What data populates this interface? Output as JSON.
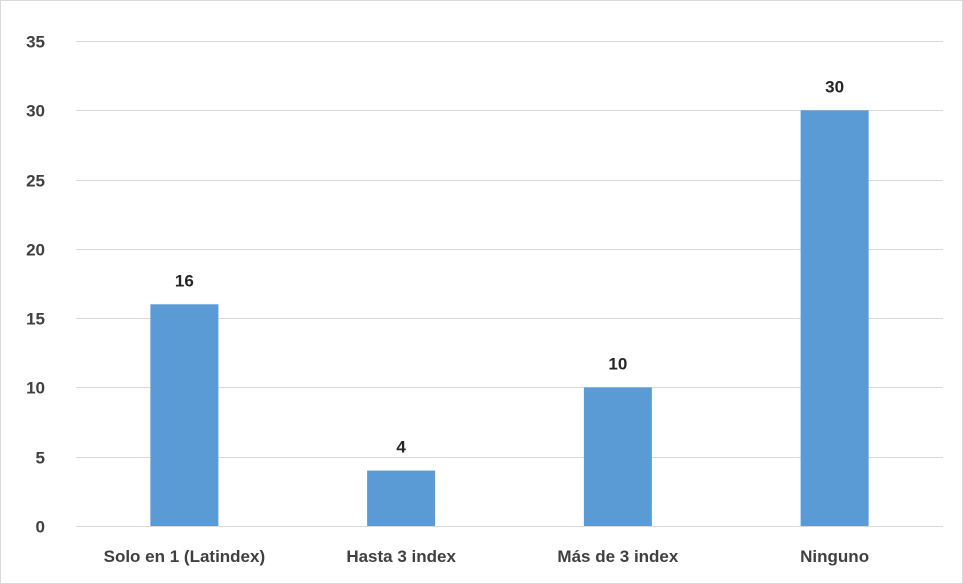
{
  "chart_data": {
    "type": "bar",
    "categories": [
      "Solo en 1 (Latindex)",
      "Hasta 3 index",
      "Más de 3 index",
      "Ninguno"
    ],
    "values": [
      16,
      4,
      10,
      30
    ],
    "title": "",
    "xlabel": "",
    "ylabel": "",
    "ylim": [
      0,
      35
    ],
    "yticks": [
      0,
      5,
      10,
      15,
      20,
      25,
      30,
      35
    ],
    "grid": true,
    "legend": "none",
    "data_labels": true,
    "bar_color": "#5b9bd5",
    "grid_color": "#d9d9d9"
  }
}
